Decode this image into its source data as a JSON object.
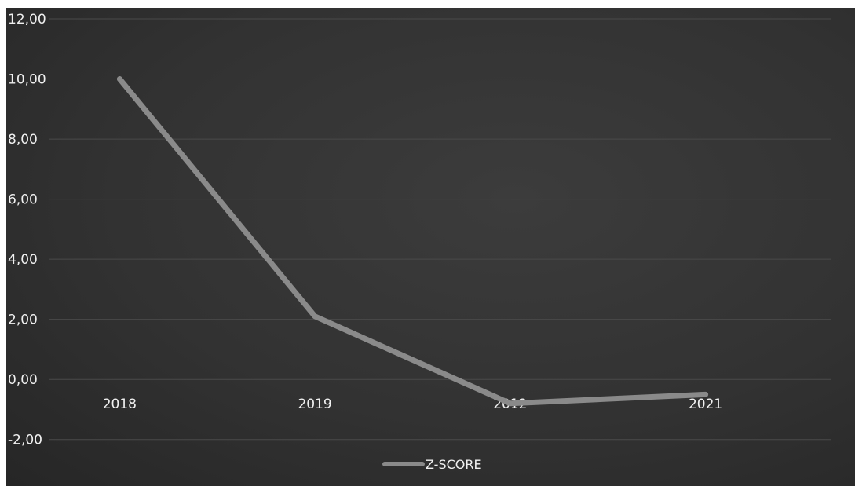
{
  "chart_data": {
    "type": "line",
    "categories": [
      "2018",
      "2019",
      "2012",
      "2021"
    ],
    "series": [
      {
        "name": "Z-SCORE",
        "values": [
          10.0,
          2.1,
          -0.8,
          -0.5
        ],
        "color": "#8a8a8a"
      }
    ],
    "title": "",
    "xlabel": "",
    "ylabel": "",
    "ylim": [
      -3.0,
      12.0
    ],
    "yticks": [
      "12,00",
      "10,00",
      "8,00",
      "6,00",
      "4,00",
      "2,00",
      "0,00",
      "-2,00"
    ],
    "grid": true,
    "legend_position": "bottom",
    "background_color": "#323232",
    "gridline_color": "#4a4a4a"
  }
}
